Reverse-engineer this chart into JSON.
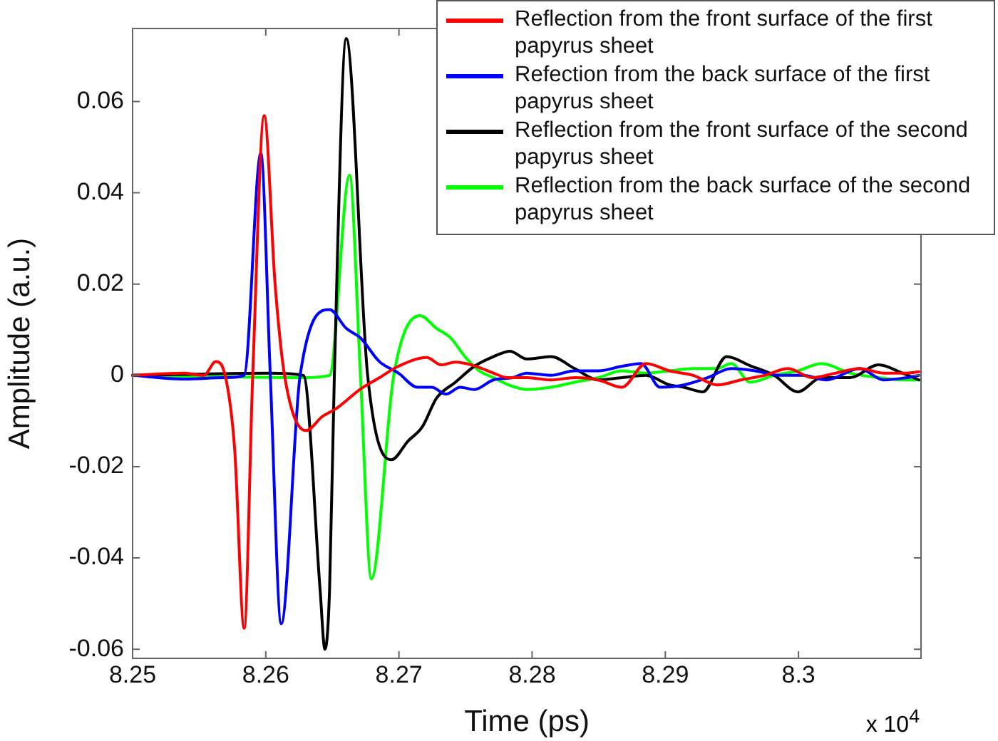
{
  "chart_data": {
    "type": "line",
    "xlabel": "Time (ps)",
    "ylabel": "Amplitude (a.u.)",
    "annotations": [
      "x 10$^{4}$"
    ],
    "xlim": [
      8.25,
      8.3092
    ],
    "xticks": [
      8.25,
      8.26,
      8.27,
      8.28,
      8.29,
      8.3
    ],
    "ylim": [
      -0.062,
      0.076
    ],
    "yticks": [
      -0.06,
      -0.04,
      -0.02,
      0,
      0.02,
      0.04,
      0.06
    ],
    "grid": false,
    "legend": "top right",
    "marker": "none",
    "line_style": "solid",
    "series": [
      {
        "name": "Reflection from the front surface of the first papyrus sheet",
        "color": "#ff0000",
        "x": [
          8.25,
          8.25392,
          8.25535,
          8.25624,
          8.25695,
          8.25766,
          8.25838,
          8.25902,
          8.25988,
          8.2607,
          8.26141,
          8.26301,
          8.26426,
          8.26533,
          8.26711,
          8.26854,
          8.26996,
          8.2721,
          8.27317,
          8.27424,
          8.27567,
          8.27709,
          8.27816,
          8.27963,
          8.28141,
          8.28319,
          8.28497,
          8.28675,
          8.28854,
          8.29032,
          8.2921,
          8.29389,
          8.29567,
          8.29745,
          8.29924,
          8.30102,
          8.3028,
          8.30459,
          8.30637,
          8.30815,
          8.30904
        ],
        "values": [
          0,
          0.0005,
          0,
          0.003,
          0,
          -0.016,
          -0.0554,
          0,
          0.0569,
          0.02,
          0,
          -0.0121,
          -0.009,
          -0.0072,
          -0.003,
          -0.0005,
          0.002,
          0.0039,
          0.0023,
          0.0029,
          0.0021,
          0.0005,
          -0.0005,
          -0.0005,
          -0.001,
          -0.0005,
          -0.001,
          -0.0026,
          0.0026,
          0.001,
          0,
          -0.0021,
          -0.001,
          0,
          0.0015,
          -0.0005,
          0.0005,
          0.0015,
          0.0005,
          0.0005,
          0.0008
        ]
      },
      {
        "name": "Refection from the back surface of the first papyrus sheet",
        "color": "#0000ff",
        "x": [
          8.25,
          8.25392,
          8.25695,
          8.25838,
          8.25963,
          8.26034,
          8.26116,
          8.26258,
          8.26479,
          8.26604,
          8.26711,
          8.26854,
          8.26996,
          8.27139,
          8.27246,
          8.27353,
          8.2746,
          8.27567,
          8.27709,
          8.27852,
          8.27959,
          8.28141,
          8.28319,
          8.28497,
          8.28675,
          8.28818,
          8.28961,
          8.2914,
          8.29317,
          8.29496,
          8.29674,
          8.29852,
          8.30031,
          8.30209,
          8.30459,
          8.30637,
          8.30815,
          8.30904
        ],
        "values": [
          0,
          -0.0008,
          -0.0005,
          0,
          0.0487,
          0,
          -0.0544,
          0,
          0.0144,
          0.0103,
          0.0082,
          0.003,
          0.0005,
          -0.0026,
          -0.0026,
          -0.0041,
          -0.0026,
          -0.0031,
          -0.001,
          -0.0005,
          0.0005,
          0,
          0.001,
          0.001,
          0.002,
          0.0026,
          -0.0026,
          -0.0021,
          -0.0005,
          0.0015,
          0.001,
          0,
          0,
          -0.001,
          0.0015,
          -0.001,
          -0.0005,
          0
        ]
      },
      {
        "name": "Reflection from the front surface of the second papyrus sheet",
        "color": "#000000",
        "x": [
          8.25,
          8.26034,
          8.26283,
          8.26408,
          8.26444,
          8.26479,
          8.26515,
          8.26604,
          8.26765,
          8.26943,
          8.27068,
          8.27175,
          8.27282,
          8.27424,
          8.27567,
          8.27709,
          8.27834,
          8.27959,
          8.28141,
          8.28319,
          8.28497,
          8.28675,
          8.28854,
          8.29032,
          8.29139,
          8.29282,
          8.2946,
          8.29638,
          8.29817,
          8.29995,
          8.30173,
          8.30387,
          8.30601,
          8.3078,
          8.30904
        ],
        "values": [
          0,
          0.0005,
          0,
          -0.047,
          -0.06,
          -0.047,
          0,
          0.0738,
          0,
          -0.0185,
          -0.0144,
          -0.0113,
          -0.005,
          -0.0015,
          0.002,
          0.0041,
          0.0053,
          0.0036,
          0.0041,
          0.0015,
          -0.001,
          -0.0005,
          0,
          -0.0021,
          -0.0026,
          -0.0036,
          0.0041,
          0.0021,
          0,
          -0.0036,
          -0.0005,
          -0.0005,
          0.0023,
          0.0005,
          -0.001
        ]
      },
      {
        "name": "Reflection from the back surface of the second papyrus sheet",
        "color": "#00ff00",
        "x": [
          8.25,
          8.25695,
          8.26283,
          8.26479,
          8.26629,
          8.26711,
          8.26793,
          8.26961,
          8.27157,
          8.27282,
          8.27389,
          8.27496,
          8.27603,
          8.27709,
          8.27816,
          8.27959,
          8.28141,
          8.28319,
          8.28497,
          8.28675,
          8.28854,
          8.29032,
          8.2921,
          8.29389,
          8.29496,
          8.29638,
          8.29817,
          8.29995,
          8.30173,
          8.30387,
          8.30601,
          8.3078,
          8.30904
        ],
        "values": [
          0,
          -0.0003,
          -0.0005,
          0,
          0.0439,
          0,
          -0.0446,
          0,
          0.0131,
          0.0103,
          0.0082,
          0.0041,
          0.001,
          -0.0005,
          -0.002,
          -0.0031,
          -0.0026,
          -0.0015,
          -0.0005,
          0.001,
          0.0005,
          0.001,
          0.0015,
          0.0015,
          0.0026,
          -0.0015,
          0,
          0.001,
          0.0026,
          0.0005,
          -0.0005,
          -0.001,
          -0.001
        ]
      }
    ]
  }
}
